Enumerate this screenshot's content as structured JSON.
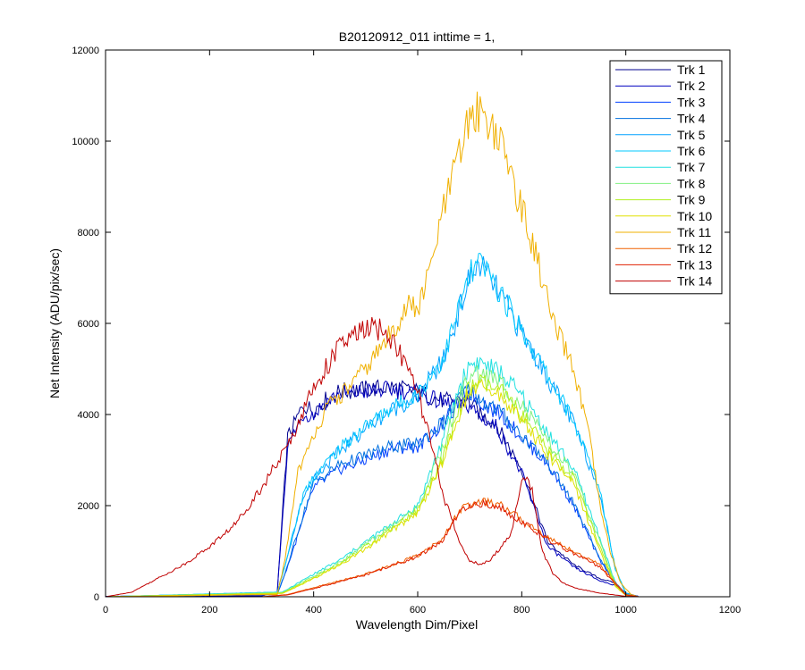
{
  "chart_data": {
    "type": "line",
    "title": "B20120912_011 inttime = 1,",
    "xlabel": "Wavelength Dim/Pixel",
    "ylabel": "Net Intensity (ADU/pix/sec)",
    "xlim": [
      0,
      1200
    ],
    "ylim": [
      0,
      12000
    ],
    "xticks": [
      0,
      200,
      400,
      600,
      800,
      1000,
      1200
    ],
    "yticks": [
      0,
      2000,
      4000,
      6000,
      8000,
      10000,
      12000
    ],
    "grid": false,
    "legend_position": "top-right",
    "series": [
      {
        "name": "Trk 1",
        "color": "#00008f",
        "x": [
          0,
          300,
          330,
          350,
          380,
          400,
          420,
          450,
          500,
          550,
          600,
          650,
          700,
          720,
          750,
          800,
          850,
          900,
          950,
          980,
          1000,
          1024
        ],
        "y": [
          10,
          20,
          100,
          3500,
          4200,
          4100,
          4300,
          4500,
          4550,
          4600,
          4500,
          4300,
          4300,
          4000,
          3800,
          2800,
          1200,
          700,
          400,
          300,
          80,
          10
        ]
      },
      {
        "name": "Trk 2",
        "color": "#0000bf",
        "x": [
          0,
          300,
          330,
          350,
          380,
          400,
          420,
          450,
          500,
          550,
          600,
          650,
          700,
          720,
          750,
          800,
          850,
          900,
          950,
          980,
          1000,
          1024
        ],
        "y": [
          10,
          20,
          100,
          3300,
          4000,
          4000,
          4250,
          4450,
          4500,
          4550,
          4450,
          4250,
          4200,
          3950,
          3750,
          2700,
          1100,
          650,
          350,
          250,
          70,
          10
        ]
      },
      {
        "name": "Trk 3",
        "color": "#0040ff",
        "x": [
          0,
          330,
          345,
          380,
          400,
          450,
          500,
          550,
          600,
          650,
          680,
          700,
          720,
          760,
          800,
          850,
          900,
          950,
          980,
          1000,
          1024
        ],
        "y": [
          0,
          50,
          500,
          1700,
          2400,
          2800,
          3000,
          3250,
          3300,
          3800,
          4300,
          4500,
          4300,
          4000,
          3500,
          2900,
          2000,
          800,
          300,
          50,
          0
        ]
      },
      {
        "name": "Trk 4",
        "color": "#0070df",
        "x": [
          0,
          330,
          345,
          380,
          400,
          450,
          500,
          550,
          600,
          650,
          680,
          700,
          720,
          760,
          800,
          850,
          900,
          950,
          980,
          1000,
          1024
        ],
        "y": [
          0,
          50,
          520,
          1800,
          2500,
          2900,
          3100,
          3300,
          3350,
          3850,
          4350,
          4550,
          4350,
          4050,
          3550,
          2950,
          2050,
          850,
          320,
          50,
          0
        ]
      },
      {
        "name": "Trk 5",
        "color": "#00a0ff",
        "x": [
          0,
          330,
          345,
          380,
          400,
          450,
          500,
          550,
          600,
          650,
          680,
          700,
          720,
          760,
          800,
          850,
          900,
          950,
          980,
          1000,
          1024
        ],
        "y": [
          0,
          100,
          700,
          2200,
          2600,
          3200,
          3700,
          4100,
          4400,
          5200,
          6300,
          7000,
          7300,
          6600,
          5800,
          4800,
          3800,
          2300,
          600,
          80,
          0
        ]
      },
      {
        "name": "Trk 6",
        "color": "#00c8ff",
        "x": [
          0,
          330,
          345,
          380,
          400,
          450,
          500,
          550,
          600,
          650,
          680,
          700,
          720,
          760,
          800,
          850,
          900,
          950,
          980,
          1000,
          1024
        ],
        "y": [
          0,
          100,
          700,
          2250,
          2650,
          3250,
          3750,
          4150,
          4450,
          5250,
          6350,
          7050,
          7350,
          6650,
          5850,
          4850,
          3850,
          2350,
          620,
          80,
          0
        ]
      },
      {
        "name": "Trk 7",
        "color": "#20e0e0",
        "x": [
          0,
          340,
          400,
          450,
          500,
          550,
          600,
          650,
          680,
          700,
          720,
          760,
          800,
          850,
          900,
          950,
          980,
          1000,
          1024
        ],
        "y": [
          0,
          100,
          500,
          800,
          1200,
          1600,
          2000,
          3500,
          4600,
          5100,
          5150,
          4900,
          4400,
          3600,
          2800,
          1300,
          300,
          50,
          0
        ]
      },
      {
        "name": "Trk 8",
        "color": "#80f080",
        "x": [
          0,
          340,
          400,
          450,
          500,
          550,
          600,
          650,
          680,
          700,
          720,
          760,
          800,
          850,
          900,
          950,
          980,
          1000,
          1024
        ],
        "y": [
          0,
          90,
          450,
          750,
          1150,
          1550,
          1950,
          3300,
          4400,
          4850,
          4900,
          4700,
          4200,
          3400,
          2700,
          1200,
          280,
          40,
          0
        ]
      },
      {
        "name": "Trk 9",
        "color": "#b0f020",
        "x": [
          0,
          340,
          400,
          450,
          500,
          550,
          600,
          650,
          680,
          700,
          720,
          760,
          800,
          850,
          900,
          950,
          980,
          1000,
          1024
        ],
        "y": [
          0,
          80,
          420,
          720,
          1100,
          1500,
          1900,
          3100,
          4100,
          4600,
          4700,
          4500,
          4000,
          3200,
          2600,
          1100,
          250,
          40,
          0
        ]
      },
      {
        "name": "Trk 10",
        "color": "#e0e000",
        "x": [
          0,
          340,
          400,
          450,
          500,
          550,
          600,
          650,
          680,
          700,
          720,
          760,
          800,
          850,
          900,
          950,
          980,
          1000,
          1024
        ],
        "y": [
          0,
          70,
          400,
          700,
          1050,
          1450,
          1850,
          3000,
          4000,
          4500,
          4600,
          4400,
          3900,
          3100,
          2500,
          1000,
          220,
          30,
          0
        ]
      },
      {
        "name": "Trk 11",
        "color": "#f0b000",
        "x": [
          0,
          330,
          345,
          370,
          390,
          400,
          430,
          460,
          500,
          550,
          580,
          600,
          620,
          650,
          680,
          700,
          720,
          750,
          780,
          800,
          830,
          860,
          900,
          930,
          950,
          970,
          990,
          1010,
          1024
        ],
        "y": [
          0,
          50,
          800,
          2800,
          3200,
          3600,
          4200,
          4500,
          5000,
          5800,
          6400,
          6300,
          7000,
          8500,
          9700,
          10500,
          10700,
          10200,
          9300,
          8500,
          7400,
          6000,
          5000,
          3500,
          2000,
          1000,
          300,
          50,
          0
        ]
      },
      {
        "name": "Trk 12",
        "color": "#f06000",
        "x": [
          0,
          300,
          350,
          400,
          450,
          500,
          550,
          600,
          650,
          680,
          700,
          720,
          760,
          800,
          850,
          900,
          950,
          980,
          1000,
          1024
        ],
        "y": [
          0,
          0,
          50,
          200,
          350,
          500,
          700,
          900,
          1300,
          1900,
          2000,
          2100,
          2000,
          1700,
          1300,
          1000,
          700,
          300,
          50,
          0
        ]
      },
      {
        "name": "Trk 13",
        "color": "#e02000",
        "x": [
          0,
          300,
          350,
          400,
          450,
          500,
          550,
          600,
          650,
          680,
          700,
          720,
          760,
          800,
          850,
          900,
          950,
          980,
          1000,
          1024
        ],
        "y": [
          0,
          0,
          40,
          180,
          330,
          480,
          680,
          880,
          1250,
          1850,
          1950,
          2050,
          1950,
          1650,
          1250,
          950,
          650,
          280,
          40,
          0
        ]
      },
      {
        "name": "Trk 14",
        "color": "#c00000",
        "x": [
          0,
          50,
          100,
          150,
          200,
          250,
          300,
          350,
          400,
          450,
          500,
          530,
          560,
          600,
          620,
          650,
          680,
          700,
          720,
          740,
          760,
          780,
          800,
          810,
          820,
          840,
          860,
          880,
          900,
          950,
          1000,
          1024
        ],
        "y": [
          0,
          100,
          400,
          700,
          1100,
          1600,
          2400,
          3300,
          4600,
          5500,
          5900,
          5850,
          5500,
          4500,
          3600,
          2200,
          1200,
          800,
          700,
          800,
          1100,
          1400,
          2500,
          2700,
          2300,
          1000,
          500,
          300,
          200,
          80,
          10,
          0
        ]
      }
    ]
  }
}
